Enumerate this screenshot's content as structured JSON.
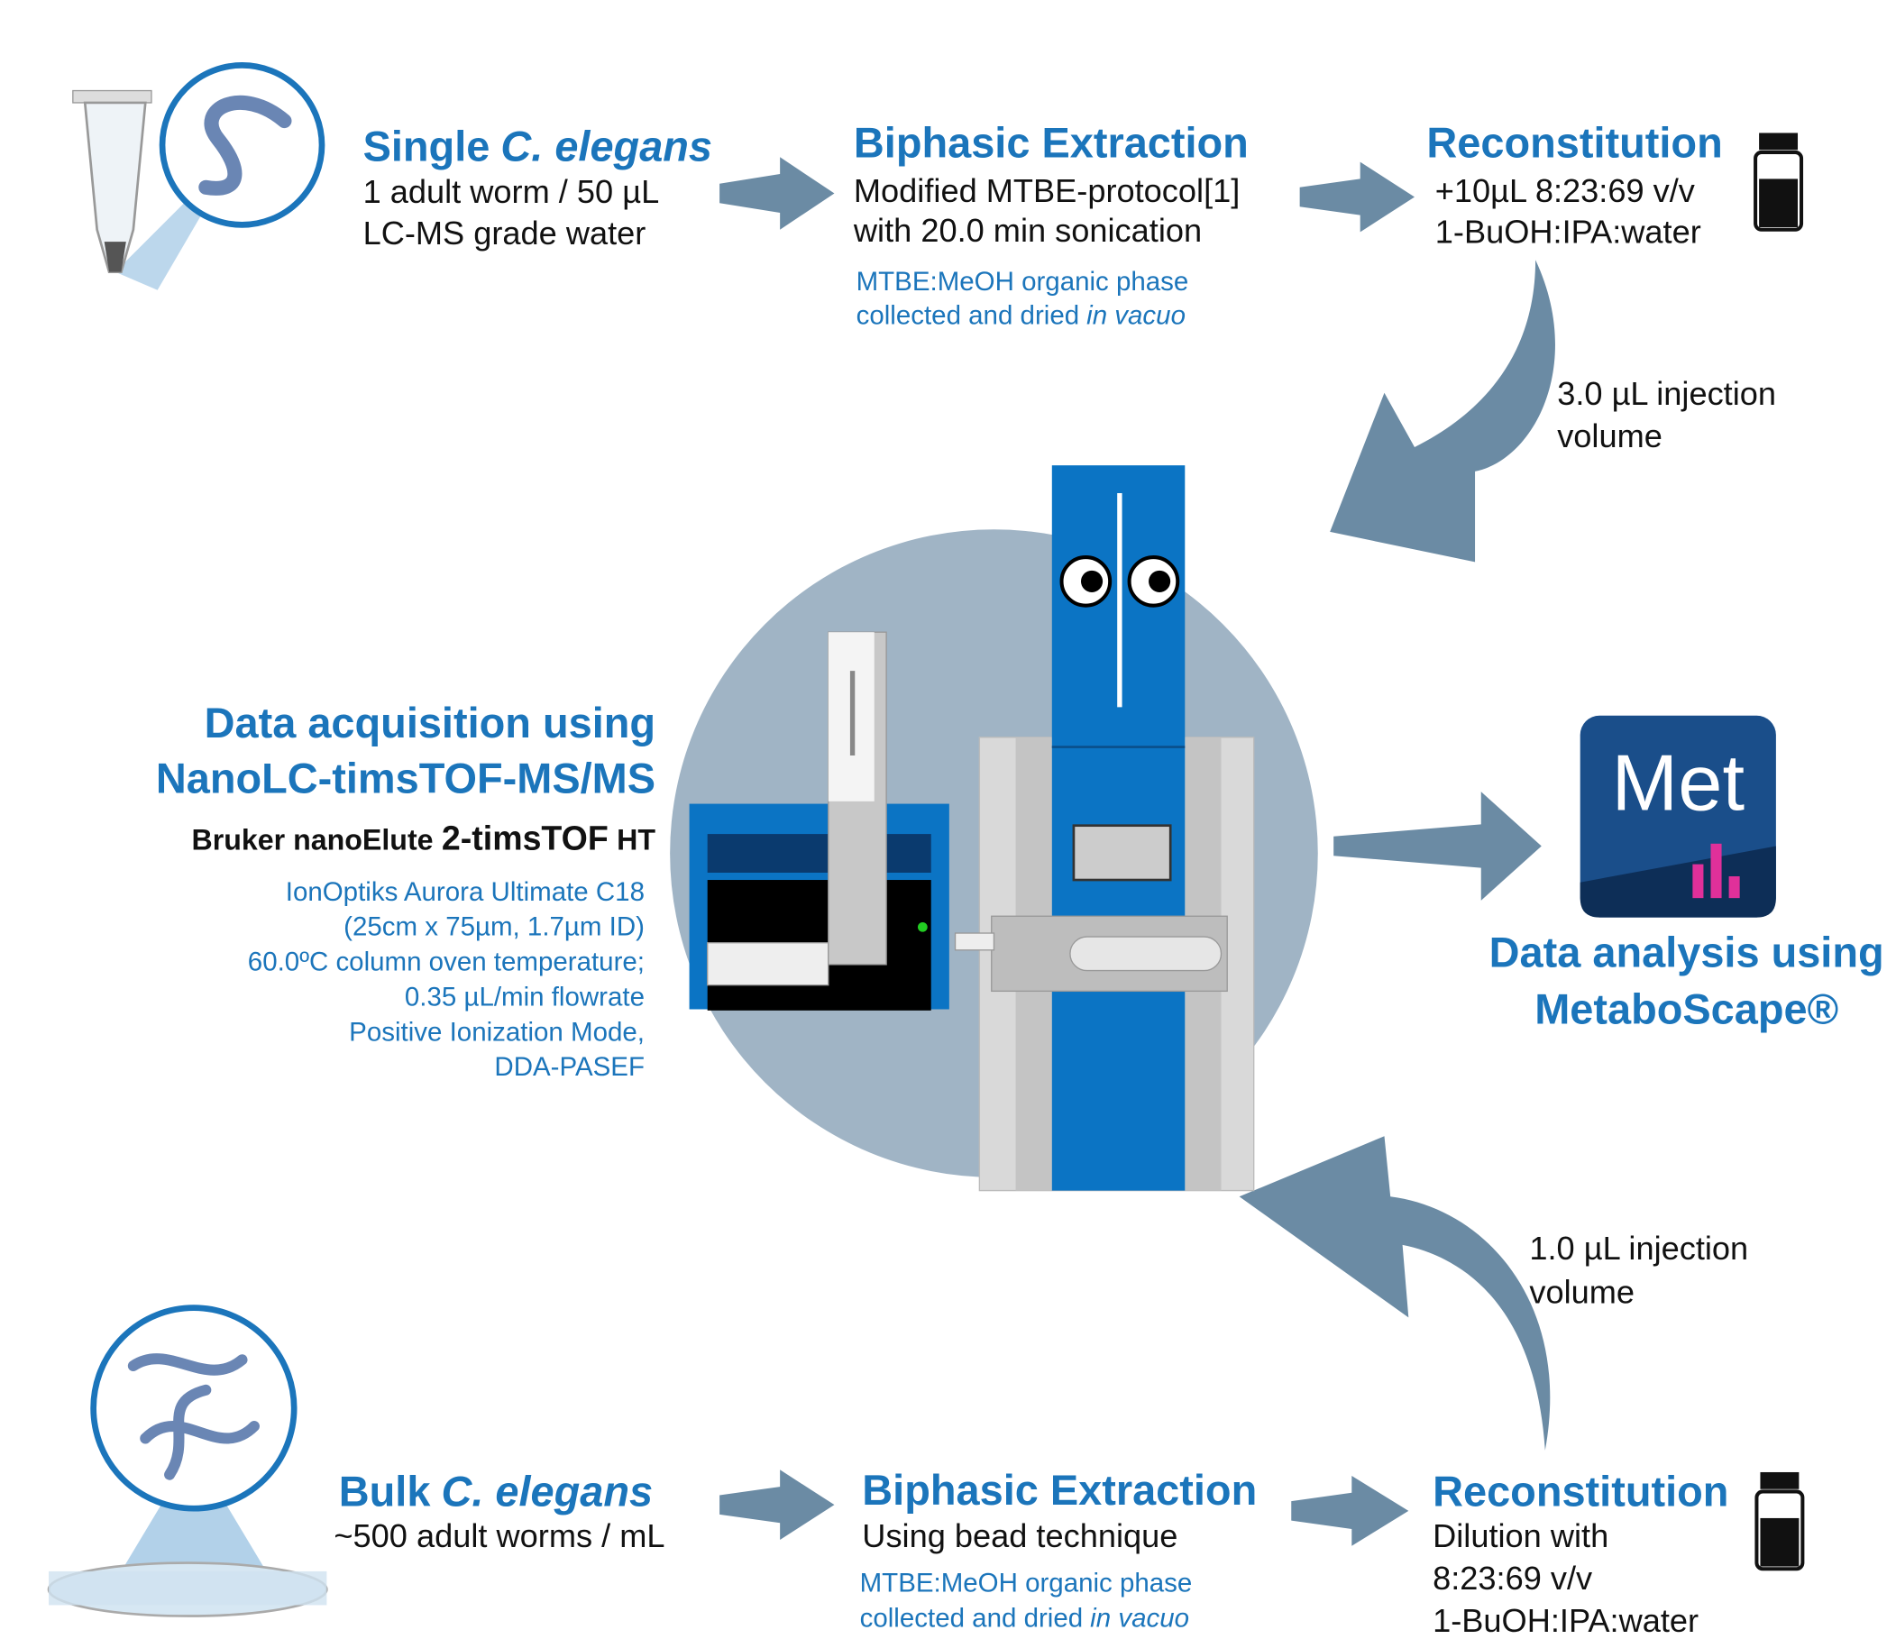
{
  "top_row": {
    "sample": {
      "title": [
        "Single",
        "C. elegans"
      ],
      "lines": [
        "1 adult worm / 50 µL",
        "LC-MS grade water"
      ]
    },
    "extraction": {
      "title": "Biphasic Extraction",
      "lines": [
        "Modified MTBE-protocol[1]",
        "with 20.0 min sonication"
      ],
      "note": [
        "MTBE:MeOH organic phase",
        "collected and dried"
      ],
      "note_italic": "in vacuo"
    },
    "reconstitution": {
      "title": "Reconstitution",
      "lines": [
        "+10µL 8:23:69 v/v",
        "1-BuOH:IPA:water"
      ]
    },
    "injection": [
      "3.0 µL injection",
      "volume"
    ]
  },
  "acquisition": {
    "title": [
      "Data acquisition using",
      "NanoLC-timsTOF-MS/MS"
    ],
    "instrument": [
      "Bruker nanoElute",
      "2-timsTOF",
      "HT"
    ],
    "details": [
      "IonOptiks Aurora Ultimate C18",
      "(25cm x 75µm, 1.7µm ID)",
      "60.0ºC column oven temperature;",
      "0.35 µL/min flowrate",
      "Positive Ionization Mode,",
      "DDA-PASEF"
    ]
  },
  "analysis": {
    "icon": "Met",
    "title": [
      "Data analysis using",
      "MetaboScape®"
    ]
  },
  "bottom_row": {
    "sample": {
      "title": [
        "Bulk",
        "C. elegans"
      ],
      "lines": [
        "~500 adult worms / mL"
      ]
    },
    "extraction": {
      "title": "Biphasic Extraction",
      "lines": [
        "Using bead technique"
      ],
      "note": [
        "MTBE:MeOH organic phase",
        "collected and dried"
      ],
      "note_italic": "in vacuo"
    },
    "reconstitution": {
      "title": "Reconstitution",
      "lines": [
        "Dilution with",
        "8:23:69 v/v",
        "1-BuOH:IPA:water"
      ]
    },
    "injection": [
      "1.0 µL injection",
      "volume"
    ]
  }
}
